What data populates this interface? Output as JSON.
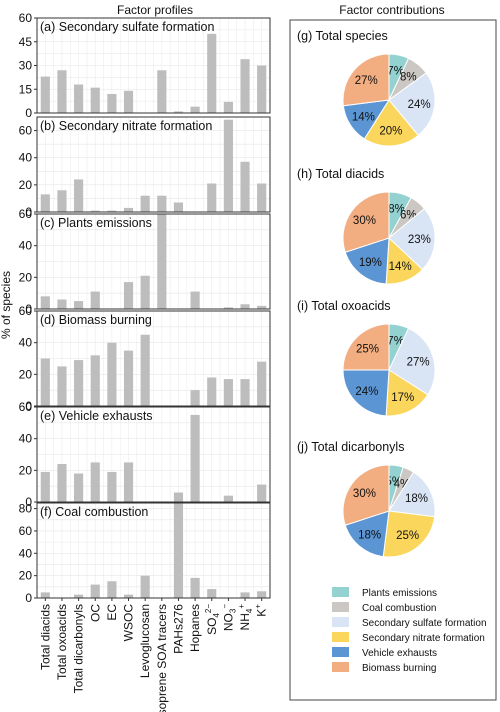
{
  "left_title": "Factor profiles",
  "right_title": "Factor contributions",
  "ylabel": "% of species",
  "categories": [
    "Total diacids",
    "Total oxoacids",
    "Total dicarbonyls",
    "OC",
    "EC",
    "WSOC",
    "Levoglucosan",
    "Isoprene SOA tracers",
    "PAHs276",
    "Hopanes",
    "SO4",
    "NO3",
    "NH4",
    "K"
  ],
  "category_display": [
    {
      "base": "Total diacids",
      "sup": ""
    },
    {
      "base": "Total oxoacids",
      "sup": ""
    },
    {
      "base": "Total dicarbonyls",
      "sup": ""
    },
    {
      "base": "OC",
      "sup": ""
    },
    {
      "base": "EC",
      "sup": ""
    },
    {
      "base": "WSOC",
      "sup": ""
    },
    {
      "base": "Levoglucosan",
      "sup": ""
    },
    {
      "base": "Isoprene SOA tracers",
      "sup": ""
    },
    {
      "base": "PAHs276",
      "sup": ""
    },
    {
      "base": "Hopanes",
      "sup": ""
    },
    {
      "base": "SO",
      "sub": "4",
      "sup": "2−"
    },
    {
      "base": "NO",
      "sub": "3",
      "sup": "−"
    },
    {
      "base": "NH",
      "sub": "4",
      "sup": "+"
    },
    {
      "base": "K",
      "sup": "+"
    }
  ],
  "bar_color": "#bdbdbd",
  "chart_data": [
    {
      "type": "bar",
      "title": "(a) Secondary sulfate formation",
      "ylim": [
        0,
        60
      ],
      "yticks": [
        0,
        15,
        30,
        45,
        60
      ],
      "values": [
        23,
        27,
        18,
        16,
        12,
        14,
        0,
        27,
        1,
        4,
        50,
        7,
        34,
        30
      ]
    },
    {
      "type": "bar",
      "title": "(b) Secondary nitrate formation",
      "ylim": [
        0,
        70
      ],
      "yticks": [
        0,
        20,
        40,
        60
      ],
      "values": [
        13,
        16,
        24,
        1,
        1,
        3,
        12,
        12,
        7,
        0,
        21,
        68,
        37,
        21
      ]
    },
    {
      "type": "bar",
      "title": "(c) Plants emissions",
      "ylim": [
        0,
        60
      ],
      "yticks": [
        0,
        20,
        40,
        60
      ],
      "values": [
        8,
        6,
        5,
        11,
        0,
        17,
        21,
        60,
        0,
        11,
        0,
        1,
        3,
        2
      ]
    },
    {
      "type": "bar",
      "title": "(d) Biomass burning",
      "ylim": [
        0,
        60
      ],
      "yticks": [
        0,
        20,
        40,
        60
      ],
      "values": [
        30,
        25,
        29,
        32,
        40,
        35,
        45,
        0,
        0,
        10,
        18,
        17,
        17,
        28
      ]
    },
    {
      "type": "bar",
      "title": "(e) Vehicle exhausts",
      "ylim": [
        0,
        60
      ],
      "yticks": [
        0,
        20,
        40,
        60
      ],
      "values": [
        19,
        24,
        18,
        25,
        19,
        25,
        0,
        0,
        6,
        55,
        0,
        4,
        0,
        11
      ]
    },
    {
      "type": "bar",
      "title": "(f) Coal combustion",
      "ylim": [
        0,
        85
      ],
      "yticks": [
        0,
        20,
        40,
        60,
        80
      ],
      "values": [
        5,
        0,
        3,
        12,
        15,
        3,
        20,
        0,
        85,
        18,
        8,
        0,
        5,
        6
      ]
    },
    {
      "type": "pie",
      "title": "(g) Total species",
      "values": [
        7,
        8,
        24,
        20,
        14,
        27
      ],
      "labels": [
        "7%",
        "8%",
        "24%",
        "20%",
        "14%",
        "27%"
      ]
    },
    {
      "type": "pie",
      "title": "(h) Total diacids",
      "values": [
        8,
        6,
        23,
        14,
        19,
        30
      ],
      "labels": [
        "8%",
        "6%",
        "23%",
        "14%",
        "19%",
        "30%"
      ]
    },
    {
      "type": "pie",
      "title": "(i) Total oxoacids",
      "values": [
        7,
        0,
        27,
        17,
        24,
        25
      ],
      "labels": [
        "7%",
        "",
        "27%",
        "17%",
        "24%",
        "25%"
      ]
    },
    {
      "type": "pie",
      "title": "(j) Total dicarbonyls",
      "values": [
        5,
        4,
        18,
        25,
        18,
        30
      ],
      "labels": [
        "5%",
        "4%",
        "18%",
        "25%",
        "18%",
        "30%"
      ]
    }
  ],
  "pie_legend": [
    {
      "name": "Plants emissions",
      "color": "#93d2d1"
    },
    {
      "name": "Coal combustion",
      "color": "#cbc8c4"
    },
    {
      "name": "Secondary sulfate formation",
      "color": "#d9e4f5"
    },
    {
      "name": "Secondary nitrate formation",
      "color": "#fad65c"
    },
    {
      "name": "Vehicle exhausts",
      "color": "#5b95d3"
    },
    {
      "name": "Biomass burning",
      "color": "#f2ad80"
    }
  ]
}
